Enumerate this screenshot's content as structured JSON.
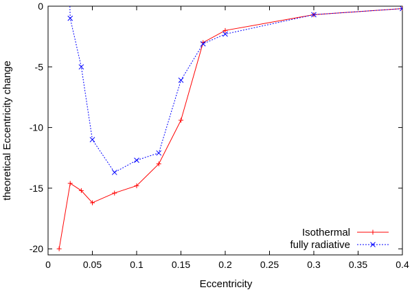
{
  "chart_data": {
    "type": "line",
    "title": "",
    "xlabel": "Eccentricity",
    "ylabel": "theoretical Eccentricity change",
    "xlim": [
      0,
      0.4
    ],
    "ylim": [
      -20.5,
      0
    ],
    "xticks": [
      0,
      0.05,
      0.1,
      0.15,
      0.2,
      0.25,
      0.3,
      0.35,
      0.4
    ],
    "xtick_labels": [
      "0",
      "0.05",
      "0.1",
      "0.15",
      "0.2",
      "0.25",
      "0.3",
      "0.35",
      "0.4"
    ],
    "yticks": [
      0,
      -5,
      -10,
      -15,
      -20
    ],
    "ytick_labels": [
      "0",
      "-5",
      "-10",
      "-15",
      "-20"
    ],
    "grid": false,
    "legend_position": "bottom-right",
    "series": [
      {
        "name": "Isothermal",
        "color": "#ff0000",
        "line_style": "solid",
        "marker": "plus",
        "x": [
          0.0125,
          0.025,
          0.0375,
          0.05,
          0.075,
          0.1,
          0.125,
          0.15,
          0.175,
          0.2,
          0.3,
          0.4
        ],
        "y": [
          -20.0,
          -14.6,
          -15.2,
          -16.2,
          -15.4,
          -14.8,
          -13.0,
          -9.4,
          -3.0,
          -2.0,
          -0.7,
          -0.2
        ]
      },
      {
        "name": "fully radiative",
        "color": "#0000ff",
        "line_style": "dotted",
        "marker": "x",
        "x": [
          0.025,
          0.0375,
          0.05,
          0.075,
          0.1,
          0.125,
          0.15,
          0.175,
          0.2,
          0.3,
          0.4
        ],
        "y": [
          -1.0,
          -5.0,
          -11.0,
          -13.7,
          -12.7,
          -12.1,
          -6.1,
          -3.1,
          -2.3,
          -0.7,
          -0.2
        ]
      }
    ]
  }
}
